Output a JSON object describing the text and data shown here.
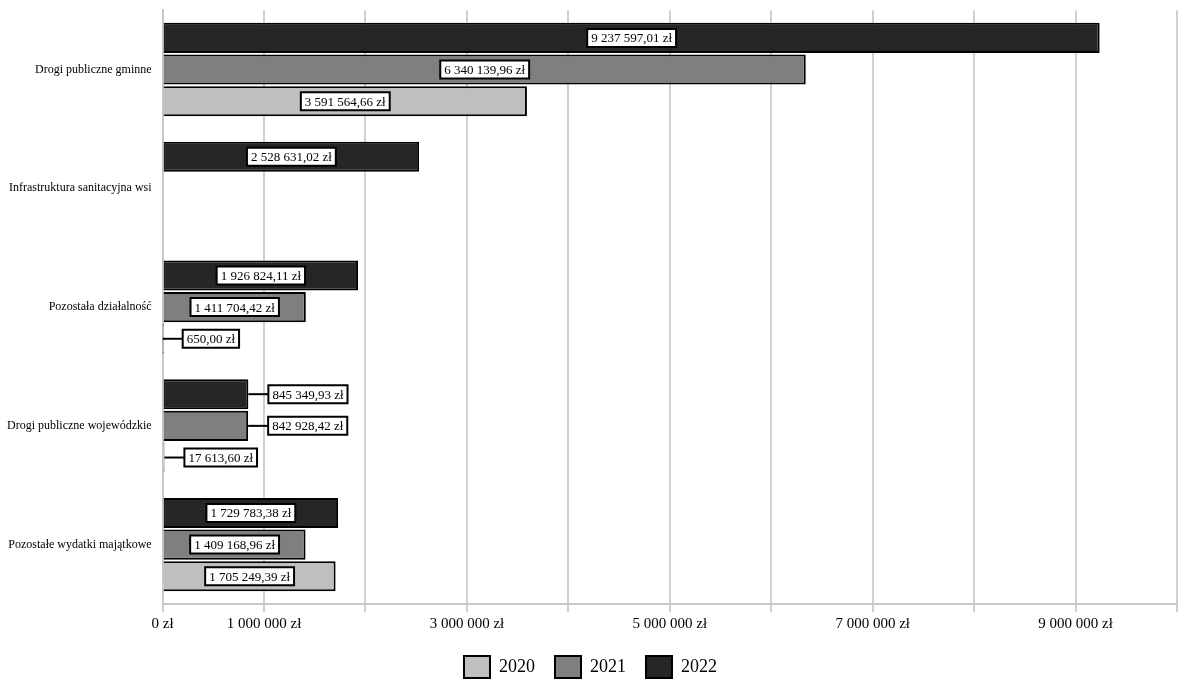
{
  "chart_data": {
    "type": "bar",
    "orientation": "horizontal",
    "categories": [
      "Drogi publiczne gminne",
      "Infrastruktura sanitacyjna wsi",
      "Pozostała działalność",
      "Drogi publiczne wojewódzkie",
      "Pozostałe wydatki majątkowe"
    ],
    "series": [
      {
        "name": "2020",
        "color": "#bfbfbf",
        "values": [
          3591564.66,
          null,
          650.0,
          17613.6,
          1705249.39
        ],
        "value_labels": [
          "3 591 564,66 zł",
          null,
          "650,00 zł",
          "17 613,60 zł",
          "1 705 249,39 zł"
        ]
      },
      {
        "name": "2021",
        "color": "#7f7f7f",
        "values": [
          6340139.96,
          null,
          1411704.42,
          842928.42,
          1409168.96
        ],
        "value_labels": [
          "6 340 139,96 zł",
          null,
          "1 411 704,42 zł",
          "842 928,42 zł",
          "1 409 168,96 zł"
        ]
      },
      {
        "name": "2022",
        "color": "#262626",
        "values": [
          9237597.01,
          2528631.02,
          1926824.11,
          845349.93,
          1729783.38
        ],
        "value_labels": [
          "9 237 597,01 zł",
          "2 528 631,02 zł",
          "1 926 824,11 zł",
          "845 349,93 zł",
          "1 729 783,38 zł"
        ]
      }
    ],
    "xlim": [
      0,
      10000000
    ],
    "xticks": [
      {
        "value": 0,
        "label": "0 zł"
      },
      {
        "value": 1000000,
        "label": "1 000 000 zł"
      },
      {
        "value": 2000000,
        "label": null
      },
      {
        "value": 3000000,
        "label": "3 000 000 zł"
      },
      {
        "value": 4000000,
        "label": null
      },
      {
        "value": 5000000,
        "label": "5 000 000 zł"
      },
      {
        "value": 6000000,
        "label": null
      },
      {
        "value": 7000000,
        "label": "7 000 000 zł"
      },
      {
        "value": 8000000,
        "label": null
      },
      {
        "value": 9000000,
        "label": "9 000 000 zł"
      },
      {
        "value": 10000000,
        "label": null
      }
    ],
    "grid": "x",
    "legend": "bottom"
  }
}
